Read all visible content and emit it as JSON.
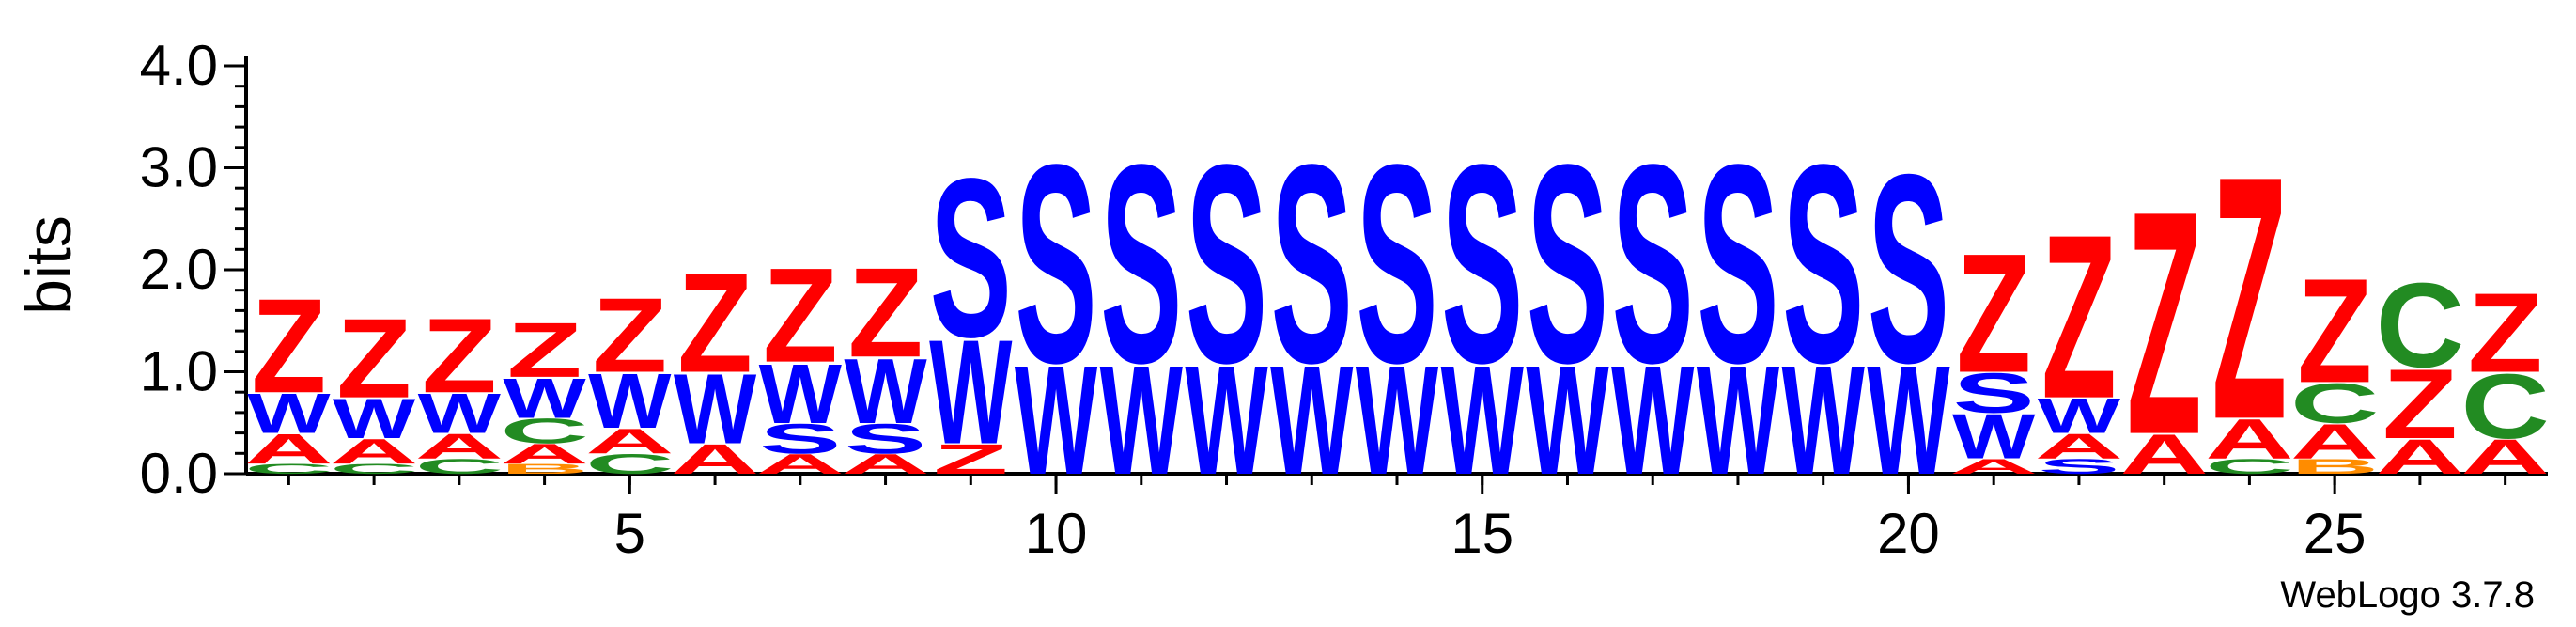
{
  "chart_data": {
    "type": "sequence-logo",
    "ylabel": "bits",
    "xlabel": "",
    "ylim": [
      0,
      4.0
    ],
    "y_ticks": [
      "0.0",
      "1.0",
      "2.0",
      "3.0",
      "4.0"
    ],
    "x_ticks": [
      "5",
      "10",
      "15",
      "20",
      "25"
    ],
    "x_range": [
      1,
      27
    ],
    "credit": "WebLogo 3.7.8",
    "colors": {
      "Z": "#ff0000",
      "A": "#ff0000",
      "W": "#0000ff",
      "S": "#0000ff",
      "C": "#228b22",
      "B": "#ff8c00",
      "D": "#0000ff"
    },
    "positions": [
      {
        "pos": 1,
        "stack": [
          [
            "C",
            0.1
          ],
          [
            "A",
            0.3
          ],
          [
            "W",
            0.4
          ],
          [
            "Z",
            0.95
          ]
        ]
      },
      {
        "pos": 2,
        "stack": [
          [
            "C",
            0.1
          ],
          [
            "A",
            0.25
          ],
          [
            "W",
            0.4
          ],
          [
            "Z",
            0.8
          ]
        ]
      },
      {
        "pos": 3,
        "stack": [
          [
            "C",
            0.15
          ],
          [
            "A",
            0.25
          ],
          [
            "W",
            0.4
          ],
          [
            "Z",
            0.75
          ]
        ]
      },
      {
        "pos": 4,
        "stack": [
          [
            "B",
            0.1
          ],
          [
            "A",
            0.2
          ],
          [
            "C",
            0.25
          ],
          [
            "W",
            0.4
          ],
          [
            "Z",
            0.55
          ]
        ]
      },
      {
        "pos": 5,
        "stack": [
          [
            "C",
            0.2
          ],
          [
            "A",
            0.25
          ],
          [
            "W",
            0.55
          ],
          [
            "Z",
            0.75
          ]
        ]
      },
      {
        "pos": 6,
        "stack": [
          [
            "A",
            0.3
          ],
          [
            "W",
            0.7
          ],
          [
            "Z",
            1.0
          ]
        ]
      },
      {
        "pos": 7,
        "stack": [
          [
            "A",
            0.2
          ],
          [
            "S",
            0.3
          ],
          [
            "W",
            0.6
          ],
          [
            "Z",
            0.95
          ]
        ]
      },
      {
        "pos": 8,
        "stack": [
          [
            "A",
            0.2
          ],
          [
            "S",
            0.3
          ],
          [
            "W",
            0.65
          ],
          [
            "Z",
            0.9
          ]
        ]
      },
      {
        "pos": 9,
        "stack": [
          [
            "Z",
            0.3
          ],
          [
            "W",
            1.05
          ],
          [
            "S",
            1.6
          ]
        ]
      },
      {
        "pos": 10,
        "stack": [
          [
            "W",
            1.1
          ],
          [
            "S",
            2.0
          ]
        ]
      },
      {
        "pos": 11,
        "stack": [
          [
            "W",
            1.1
          ],
          [
            "S",
            2.0
          ]
        ]
      },
      {
        "pos": 12,
        "stack": [
          [
            "W",
            1.1
          ],
          [
            "S",
            2.0
          ]
        ]
      },
      {
        "pos": 13,
        "stack": [
          [
            "W",
            1.1
          ],
          [
            "S",
            2.0
          ]
        ]
      },
      {
        "pos": 14,
        "stack": [
          [
            "W",
            1.1
          ],
          [
            "S",
            2.0
          ]
        ]
      },
      {
        "pos": 15,
        "stack": [
          [
            "W",
            1.1
          ],
          [
            "S",
            2.0
          ]
        ]
      },
      {
        "pos": 16,
        "stack": [
          [
            "W",
            1.1
          ],
          [
            "S",
            2.0
          ]
        ]
      },
      {
        "pos": 17,
        "stack": [
          [
            "W",
            1.1
          ],
          [
            "S",
            2.0
          ]
        ]
      },
      {
        "pos": 18,
        "stack": [
          [
            "W",
            1.1
          ],
          [
            "S",
            2.0
          ]
        ]
      },
      {
        "pos": 19,
        "stack": [
          [
            "W",
            1.1
          ],
          [
            "S",
            2.0
          ]
        ]
      },
      {
        "pos": 20,
        "stack": [
          [
            "W",
            1.1
          ],
          [
            "S",
            1.9
          ]
        ]
      },
      {
        "pos": 21,
        "stack": [
          [
            "A",
            0.15
          ],
          [
            "W",
            0.45
          ],
          [
            "S",
            0.4
          ],
          [
            "Z",
            1.2
          ]
        ]
      },
      {
        "pos": 22,
        "stack": [
          [
            "S",
            0.15
          ],
          [
            "A",
            0.25
          ],
          [
            "W",
            0.35
          ],
          [
            "Z",
            1.65
          ]
        ]
      },
      {
        "pos": 23,
        "stack": [
          [
            "A",
            0.4
          ],
          [
            "Z",
            2.25
          ]
        ]
      },
      {
        "pos": 24,
        "stack": [
          [
            "C",
            0.15
          ],
          [
            "A",
            0.4
          ],
          [
            "Z",
            2.45
          ]
        ]
      },
      {
        "pos": 25,
        "stack": [
          [
            "B",
            0.15
          ],
          [
            "A",
            0.35
          ],
          [
            "C",
            0.4
          ],
          [
            "Z",
            1.05
          ]
        ]
      },
      {
        "pos": 26,
        "stack": [
          [
            "A",
            0.35
          ],
          [
            "Z",
            0.7
          ],
          [
            "C",
            0.85
          ]
        ]
      },
      {
        "pos": 27,
        "stack": [
          [
            "A",
            0.35
          ],
          [
            "C",
            0.65
          ],
          [
            "Z",
            0.8
          ]
        ]
      }
    ]
  }
}
